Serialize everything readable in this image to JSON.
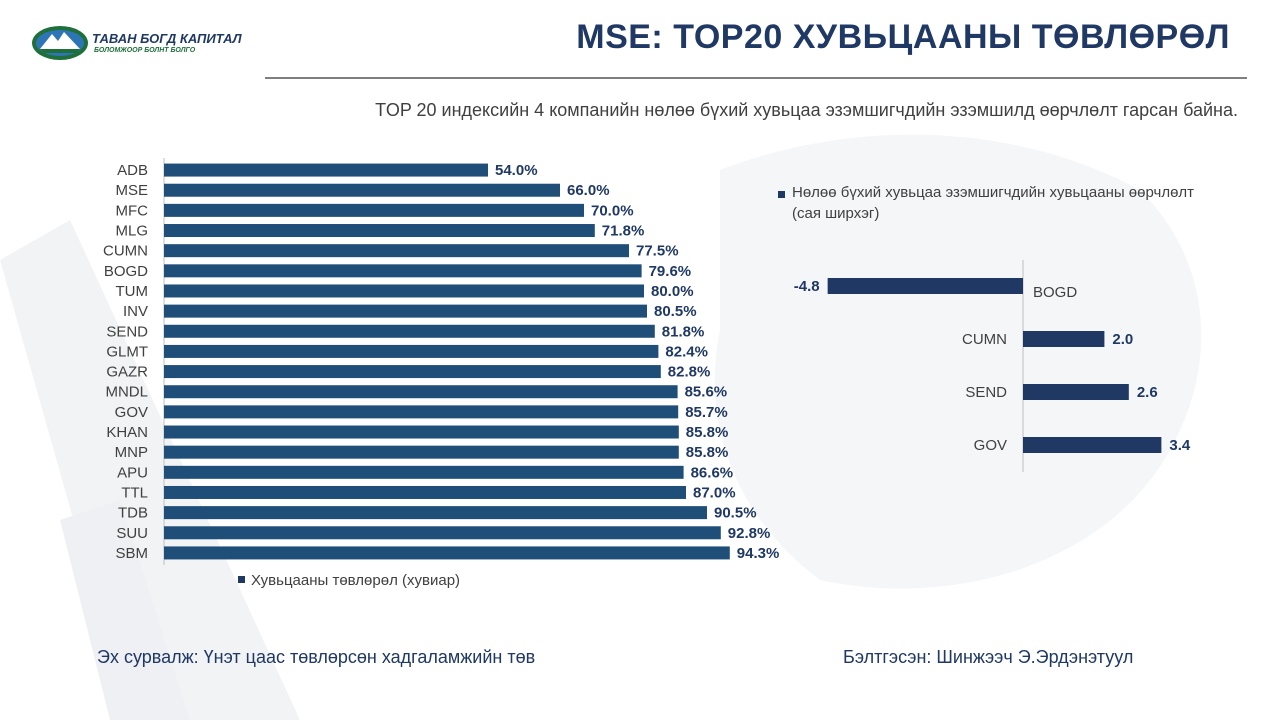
{
  "logo": {
    "name": "ТАВАН БОГД КАПИТАЛ",
    "tagline": "БОЛОМЖООР БОЛНТ БОЛГО"
  },
  "header": {
    "title": "MSE: TOP20 ХУВЬЦААНЫ ТӨВЛӨРӨЛ",
    "subtitle": "TOP 20 индексийн 4 компанийн нөлөө бүхий хувьцаа эзэмшигчдийн эзэмшилд өөрчлөлт гарсан байна."
  },
  "chart_data": [
    {
      "type": "bar",
      "orientation": "horizontal",
      "categories": [
        "ADB",
        "MSE",
        "MFC",
        "MLG",
        "CUMN",
        "BOGD",
        "TUM",
        "INV",
        "SEND",
        "GLMT",
        "GAZR",
        "MNDL",
        "GOV",
        "KHAN",
        "MNP",
        "APU",
        "TTL",
        "TDB",
        "SUU",
        "SBM"
      ],
      "series": [
        {
          "name": "Хувьцааны төвлөрөл (хувиар)",
          "values": [
            54.0,
            66.0,
            70.0,
            71.8,
            77.5,
            79.6,
            80.0,
            80.5,
            81.8,
            82.4,
            82.8,
            85.6,
            85.7,
            85.8,
            85.8,
            86.6,
            87.0,
            90.5,
            92.8,
            94.3
          ]
        }
      ],
      "data_labels": [
        "54.0%",
        "66.0%",
        "70.0%",
        "71.8%",
        "77.5%",
        "79.6%",
        "80.0%",
        "80.5%",
        "81.8%",
        "82.4%",
        "82.8%",
        "85.6%",
        "85.7%",
        "85.8%",
        "85.8%",
        "86.6%",
        "87.0%",
        "90.5%",
        "92.8%",
        "94.3%"
      ],
      "xlim": [
        0,
        100
      ],
      "legend": "bottom",
      "color": "#1f4e79"
    },
    {
      "type": "bar",
      "orientation": "horizontal",
      "categories": [
        "BOGD",
        "CUMN",
        "SEND",
        "GOV"
      ],
      "series": [
        {
          "name": "Нөлөө бүхий хувьцаа эзэмшигчдийн хувьцааны өөрчлөлт (сая ширхэг)",
          "values": [
            -4.8,
            2.0,
            2.6,
            3.4
          ]
        }
      ],
      "data_labels": [
        "-4.8",
        "2.0",
        "2.6",
        "3.4"
      ],
      "xlim": [
        -5,
        3.5
      ],
      "legend": "top",
      "color": "#1f3864"
    }
  ],
  "footer": {
    "source": "Эх сурвалж: Үнэт цаас төвлөрсөн хадгаламжийн төв",
    "prepared": "Бэлтгэсэн: Шинжээч Э.Эрдэнэтуул"
  }
}
